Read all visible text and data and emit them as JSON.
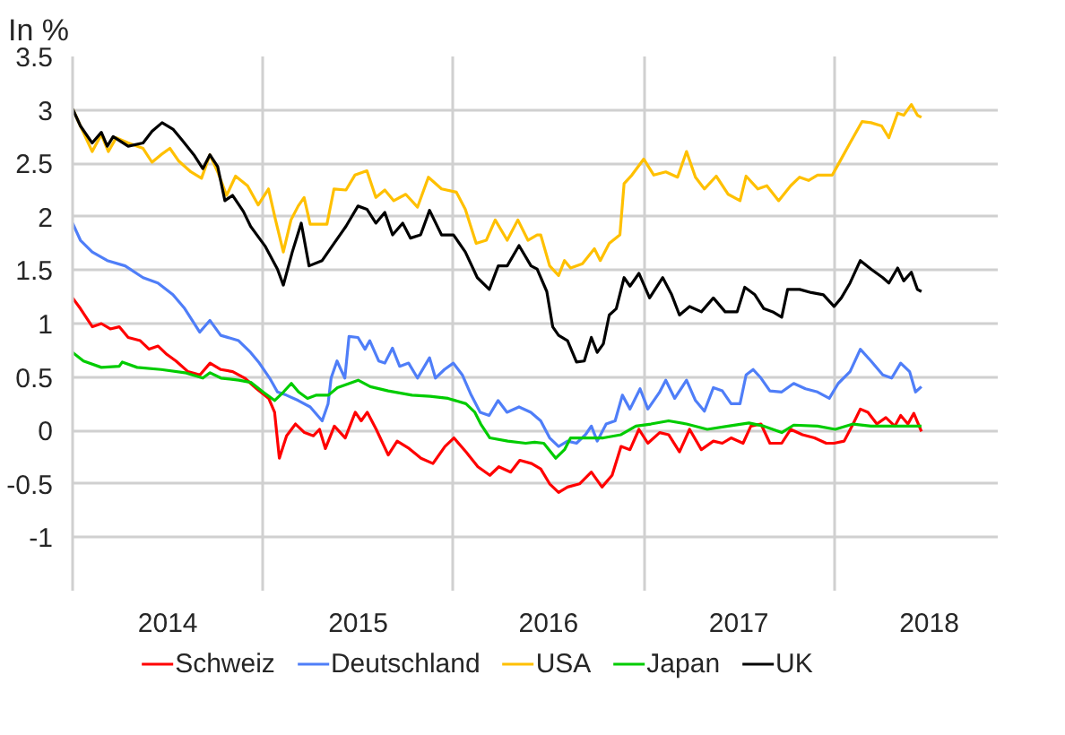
{
  "chart_data": {
    "type": "line",
    "ylabel": "In %",
    "xlim": [
      2014,
      2018.86
    ],
    "ylim": [
      -1.5,
      3.5
    ],
    "xticks": [
      {
        "value": 2014,
        "label": null
      },
      {
        "value": 2014.5,
        "label": "2014"
      },
      {
        "value": 2015,
        "label": null
      },
      {
        "value": 2015.5,
        "label": "2015"
      },
      {
        "value": 2016,
        "label": null
      },
      {
        "value": 2016.5,
        "label": "2016"
      },
      {
        "value": 2017,
        "label": null
      },
      {
        "value": 2017.5,
        "label": "2017"
      },
      {
        "value": 2018,
        "label": null
      },
      {
        "value": 2018.5,
        "label": "2018"
      }
    ],
    "yticks": [
      -1,
      -0.5,
      0,
      0.5,
      1,
      1.5,
      2,
      2.5,
      3,
      3.5
    ],
    "grid": true,
    "legend": "bottom",
    "line_style": "solid",
    "marker": "none",
    "series": [
      {
        "name": "Schweiz",
        "color": "#ff0000",
        "x": [
          2014.0,
          2014.041,
          2014.104,
          2014.151,
          2014.198,
          2014.245,
          2014.292,
          2014.355,
          2014.402,
          2014.449,
          2014.496,
          2014.543,
          2014.606,
          2014.669,
          2014.722,
          2014.779,
          2014.841,
          2014.904,
          2014.967,
          2015.03,
          2015.061,
          2015.086,
          2015.124,
          2015.171,
          2015.218,
          2015.265,
          2015.297,
          2015.328,
          2015.375,
          2015.432,
          2015.485,
          2015.516,
          2015.548,
          2015.595,
          2015.658,
          2015.705,
          2015.768,
          2015.83,
          2015.893,
          2015.956,
          2016.003,
          2016.066,
          2016.129,
          2016.192,
          2016.239,
          2016.301,
          2016.349,
          2016.411,
          2016.459,
          2016.506,
          2016.553,
          2016.6,
          2016.663,
          2016.725,
          2016.781,
          2016.834,
          2016.881,
          2016.928,
          2016.975,
          2017.022,
          2017.084,
          2017.131,
          2017.188,
          2017.241,
          2017.303,
          2017.366,
          2017.413,
          2017.459,
          2017.522,
          2017.563,
          2017.616,
          2017.663,
          2017.725,
          2017.772,
          2017.834,
          2017.897,
          2017.959,
          2018.0,
          2018.053,
          2018.1,
          2018.138,
          2018.178,
          2018.225,
          2018.272,
          2018.319,
          2018.35,
          2018.388,
          2018.419,
          2018.459
        ],
        "values": [
          1.24,
          1.14,
          0.97,
          1.0,
          0.95,
          0.97,
          0.87,
          0.84,
          0.76,
          0.79,
          0.71,
          0.65,
          0.55,
          0.52,
          0.63,
          0.57,
          0.55,
          0.49,
          0.39,
          0.3,
          0.17,
          -0.26,
          -0.05,
          0.06,
          -0.02,
          -0.05,
          0.01,
          -0.17,
          0.04,
          -0.07,
          0.17,
          0.09,
          0.17,
          0.01,
          -0.23,
          -0.1,
          -0.17,
          -0.26,
          -0.31,
          -0.15,
          -0.07,
          -0.2,
          -0.34,
          -0.42,
          -0.34,
          -0.39,
          -0.28,
          -0.31,
          -0.36,
          -0.5,
          -0.58,
          -0.53,
          -0.5,
          -0.39,
          -0.53,
          -0.42,
          -0.15,
          -0.18,
          0.01,
          -0.12,
          -0.02,
          -0.04,
          -0.2,
          0.01,
          -0.18,
          -0.1,
          -0.12,
          -0.07,
          -0.12,
          0.04,
          0.06,
          -0.12,
          -0.12,
          0.01,
          -0.04,
          -0.07,
          -0.12,
          -0.12,
          -0.1,
          0.06,
          0.2,
          0.17,
          0.06,
          0.12,
          0.04,
          0.14,
          0.06,
          0.16,
          -0.01
        ]
      },
      {
        "name": "Deutschland",
        "color": "#4f7ef8",
        "x": [
          2014.0,
          2014.041,
          2014.103,
          2014.182,
          2014.276,
          2014.37,
          2014.448,
          2014.527,
          2014.589,
          2014.668,
          2014.721,
          2014.778,
          2014.872,
          2014.935,
          2014.981,
          2015.035,
          2015.076,
          2015.123,
          2015.185,
          2015.248,
          2015.311,
          2015.342,
          2015.358,
          2015.389,
          2015.43,
          2015.452,
          2015.499,
          2015.536,
          2015.561,
          2015.608,
          2015.64,
          2015.68,
          2015.718,
          2015.765,
          2015.812,
          2015.875,
          2015.906,
          2015.953,
          2016.0,
          2016.047,
          2016.094,
          2016.141,
          2016.188,
          2016.235,
          2016.282,
          2016.345,
          2016.407,
          2016.459,
          2016.506,
          2016.553,
          2016.6,
          2016.647,
          2016.694,
          2016.725,
          2016.756,
          2016.803,
          2016.85,
          2016.888,
          2016.928,
          2016.981,
          2017.022,
          2017.084,
          2017.116,
          2017.163,
          2017.225,
          2017.272,
          2017.319,
          2017.366,
          2017.413,
          2017.459,
          2017.506,
          2017.538,
          2017.575,
          2017.616,
          2017.663,
          2017.725,
          2017.788,
          2017.85,
          2017.913,
          2017.975,
          2018.022,
          2018.084,
          2018.138,
          2018.194,
          2018.256,
          2018.303,
          2018.35,
          2018.397,
          2018.428,
          2018.459
        ],
        "values": [
          1.94,
          1.78,
          1.67,
          1.59,
          1.54,
          1.43,
          1.38,
          1.27,
          1.14,
          0.92,
          1.03,
          0.89,
          0.84,
          0.73,
          0.63,
          0.49,
          0.36,
          0.33,
          0.28,
          0.22,
          0.09,
          0.25,
          0.49,
          0.65,
          0.49,
          0.88,
          0.87,
          0.76,
          0.84,
          0.65,
          0.63,
          0.77,
          0.6,
          0.63,
          0.49,
          0.68,
          0.49,
          0.57,
          0.63,
          0.52,
          0.33,
          0.17,
          0.14,
          0.28,
          0.17,
          0.22,
          0.17,
          0.09,
          -0.07,
          -0.15,
          -0.1,
          -0.12,
          -0.04,
          0.04,
          -0.1,
          0.06,
          0.09,
          0.33,
          0.2,
          0.39,
          0.2,
          0.36,
          0.47,
          0.3,
          0.47,
          0.28,
          0.18,
          0.4,
          0.37,
          0.25,
          0.25,
          0.52,
          0.57,
          0.49,
          0.37,
          0.36,
          0.44,
          0.39,
          0.36,
          0.3,
          0.44,
          0.55,
          0.76,
          0.65,
          0.52,
          0.49,
          0.63,
          0.55,
          0.36,
          0.41
        ]
      },
      {
        "name": "USA",
        "color": "#ffc000",
        "x": [
          2014.0,
          2014.041,
          2014.103,
          2014.151,
          2014.188,
          2014.229,
          2014.292,
          2014.37,
          2014.417,
          2014.464,
          2014.511,
          2014.558,
          2014.621,
          2014.677,
          2014.721,
          2014.762,
          2014.809,
          2014.856,
          2014.919,
          2014.975,
          2015.029,
          2015.066,
          2015.107,
          2015.147,
          2015.185,
          2015.216,
          2015.248,
          2015.336,
          2015.373,
          2015.436,
          2015.483,
          2015.546,
          2015.593,
          2015.64,
          2015.687,
          2015.75,
          2015.812,
          2015.869,
          2015.938,
          2016.016,
          2016.063,
          2016.12,
          2016.173,
          2016.22,
          2016.283,
          2016.339,
          2016.392,
          2016.44,
          2016.459,
          2016.506,
          2016.553,
          2016.584,
          2016.616,
          2016.678,
          2016.741,
          2016.772,
          2016.819,
          2016.875,
          2016.897,
          2016.938,
          2017.0,
          2017.053,
          2017.116,
          2017.178,
          2017.225,
          2017.272,
          2017.319,
          2017.381,
          2017.444,
          2017.506,
          2017.538,
          2017.6,
          2017.647,
          2017.709,
          2017.772,
          2017.819,
          2017.866,
          2017.913,
          2017.991,
          2018.022,
          2018.084,
          2018.147,
          2018.194,
          2018.25,
          2018.288,
          2018.334,
          2018.366,
          2018.406,
          2018.438,
          2018.459
        ],
        "values": [
          3.01,
          2.85,
          2.61,
          2.77,
          2.61,
          2.74,
          2.69,
          2.64,
          2.51,
          2.58,
          2.64,
          2.52,
          2.42,
          2.36,
          2.58,
          2.42,
          2.2,
          2.38,
          2.29,
          2.11,
          2.26,
          1.97,
          1.67,
          1.97,
          2.1,
          2.18,
          1.93,
          1.93,
          2.26,
          2.25,
          2.39,
          2.43,
          2.18,
          2.25,
          2.15,
          2.21,
          2.09,
          2.37,
          2.26,
          2.23,
          2.07,
          1.75,
          1.78,
          1.97,
          1.78,
          1.97,
          1.78,
          1.83,
          1.83,
          1.54,
          1.45,
          1.59,
          1.52,
          1.56,
          1.7,
          1.59,
          1.75,
          1.83,
          2.31,
          2.39,
          2.54,
          2.39,
          2.42,
          2.37,
          2.61,
          2.37,
          2.26,
          2.38,
          2.21,
          2.15,
          2.38,
          2.26,
          2.29,
          2.15,
          2.29,
          2.37,
          2.34,
          2.39,
          2.39,
          2.49,
          2.69,
          2.89,
          2.88,
          2.85,
          2.74,
          2.97,
          2.95,
          3.05,
          2.95,
          2.93
        ]
      },
      {
        "name": "Japan",
        "color": "#00cc00",
        "x": [
          2014.0,
          2014.057,
          2014.151,
          2014.245,
          2014.261,
          2014.339,
          2014.465,
          2014.59,
          2014.684,
          2014.722,
          2014.779,
          2014.873,
          2014.936,
          2015.0,
          2015.061,
          2015.108,
          2015.149,
          2015.187,
          2015.234,
          2015.281,
          2015.344,
          2015.391,
          2015.454,
          2015.5,
          2015.564,
          2015.658,
          2015.783,
          2015.878,
          2015.972,
          2016.066,
          2016.113,
          2016.144,
          2016.192,
          2016.286,
          2016.38,
          2016.427,
          2016.475,
          2016.538,
          2016.584,
          2016.616,
          2016.694,
          2016.788,
          2016.881,
          2016.959,
          2017.038,
          2017.131,
          2017.225,
          2017.334,
          2017.444,
          2017.553,
          2017.631,
          2017.725,
          2017.788,
          2017.913,
          2018.006,
          2018.1,
          2018.194,
          2018.35,
          2018.459
        ],
        "values": [
          0.73,
          0.65,
          0.59,
          0.6,
          0.64,
          0.59,
          0.57,
          0.54,
          0.49,
          0.54,
          0.49,
          0.47,
          0.45,
          0.36,
          0.28,
          0.36,
          0.44,
          0.36,
          0.3,
          0.33,
          0.33,
          0.4,
          0.44,
          0.47,
          0.41,
          0.37,
          0.33,
          0.32,
          0.3,
          0.25,
          0.17,
          0.06,
          -0.07,
          -0.1,
          -0.12,
          -0.11,
          -0.12,
          -0.26,
          -0.18,
          -0.07,
          -0.07,
          -0.07,
          -0.04,
          0.04,
          0.06,
          0.09,
          0.06,
          0.01,
          0.04,
          0.07,
          0.04,
          -0.02,
          0.05,
          0.04,
          0.01,
          0.06,
          0.04,
          0.04,
          0.04
        ]
      },
      {
        "name": "UK",
        "color": "#000000",
        "x": [
          2014.0,
          2014.041,
          2014.103,
          2014.151,
          2014.182,
          2014.213,
          2014.292,
          2014.37,
          2014.417,
          2014.47,
          2014.527,
          2014.574,
          2014.637,
          2014.684,
          2014.721,
          2014.762,
          2014.8,
          2014.84,
          2014.897,
          2014.935,
          2015.013,
          2015.076,
          2015.107,
          2015.154,
          2015.201,
          2015.242,
          2015.311,
          2015.373,
          2015.436,
          2015.499,
          2015.546,
          2015.593,
          2015.64,
          2015.681,
          2015.734,
          2015.775,
          2015.828,
          2015.875,
          2015.938,
          2016.001,
          2016.063,
          2016.126,
          2016.189,
          2016.236,
          2016.283,
          2016.345,
          2016.408,
          2016.44,
          2016.491,
          2016.522,
          2016.553,
          2016.6,
          2016.647,
          2016.688,
          2016.725,
          2016.756,
          2016.788,
          2016.819,
          2016.856,
          2016.897,
          2016.928,
          2016.975,
          2017.031,
          2017.1,
          2017.147,
          2017.188,
          2017.241,
          2017.303,
          2017.366,
          2017.428,
          2017.491,
          2017.531,
          2017.584,
          2017.631,
          2017.678,
          2017.725,
          2017.756,
          2017.819,
          2017.881,
          2017.944,
          2018.0,
          2018.038,
          2018.084,
          2018.138,
          2018.194,
          2018.256,
          2018.288,
          2018.334,
          2018.366,
          2018.406,
          2018.438,
          2018.459
        ],
        "values": [
          3.01,
          2.85,
          2.69,
          2.79,
          2.66,
          2.75,
          2.66,
          2.69,
          2.8,
          2.88,
          2.82,
          2.72,
          2.58,
          2.45,
          2.58,
          2.47,
          2.15,
          2.2,
          2.05,
          1.91,
          1.72,
          1.51,
          1.36,
          1.67,
          1.94,
          1.54,
          1.59,
          1.75,
          1.91,
          2.1,
          2.07,
          1.94,
          2.04,
          1.83,
          1.94,
          1.8,
          1.83,
          2.06,
          1.83,
          1.83,
          1.67,
          1.43,
          1.32,
          1.54,
          1.54,
          1.73,
          1.54,
          1.51,
          1.3,
          0.97,
          0.89,
          0.84,
          0.64,
          0.65,
          0.87,
          0.73,
          0.81,
          1.08,
          1.14,
          1.43,
          1.35,
          1.47,
          1.24,
          1.43,
          1.27,
          1.08,
          1.16,
          1.11,
          1.24,
          1.11,
          1.11,
          1.34,
          1.27,
          1.14,
          1.11,
          1.06,
          1.32,
          1.32,
          1.29,
          1.27,
          1.16,
          1.24,
          1.38,
          1.59,
          1.51,
          1.43,
          1.38,
          1.52,
          1.4,
          1.48,
          1.32,
          1.3
        ]
      }
    ]
  }
}
